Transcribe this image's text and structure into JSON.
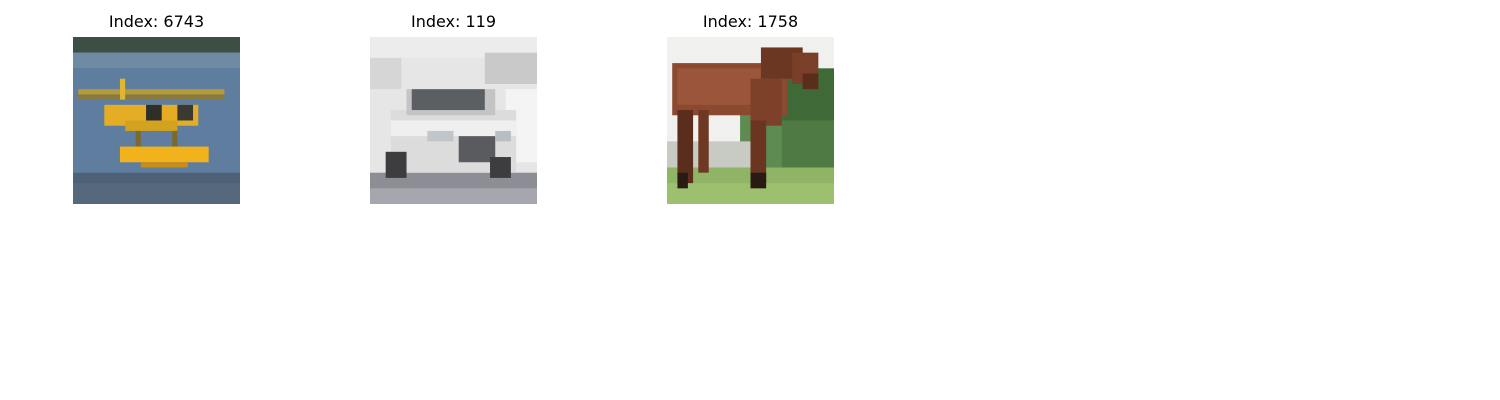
{
  "panels": [
    {
      "title": "Index: 6743",
      "image": "seaplane-on-water-image"
    },
    {
      "title": "Index: 119",
      "image": "white-car-image"
    },
    {
      "title": "Index: 1758",
      "image": "brown-horse-image"
    }
  ]
}
